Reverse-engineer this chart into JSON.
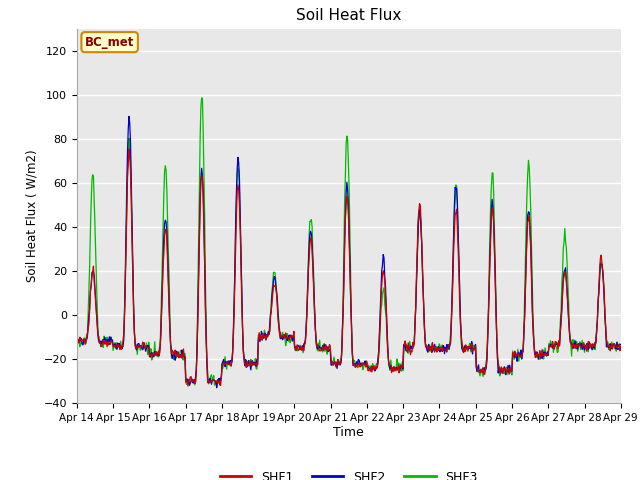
{
  "title": "Soil Heat Flux",
  "ylabel": "Soil Heat Flux ( W/m2)",
  "xlabel": "Time",
  "ylim": [
    -40,
    130
  ],
  "yticks": [
    -40,
    -20,
    0,
    20,
    40,
    60,
    80,
    100,
    120
  ],
  "bg_color": "#e8e8e8",
  "line_colors": {
    "SHF1": "#cc0000",
    "SHF2": "#0000cc",
    "SHF3": "#00bb00"
  },
  "annotation_text": "BC_met",
  "annotation_bg": "#ffffcc",
  "annotation_border": "#cc8800",
  "annotation_text_color": "#880000",
  "start_day": 14,
  "end_day": 29,
  "month": "Apr",
  "figsize": [
    6.4,
    4.8
  ],
  "dpi": 100
}
